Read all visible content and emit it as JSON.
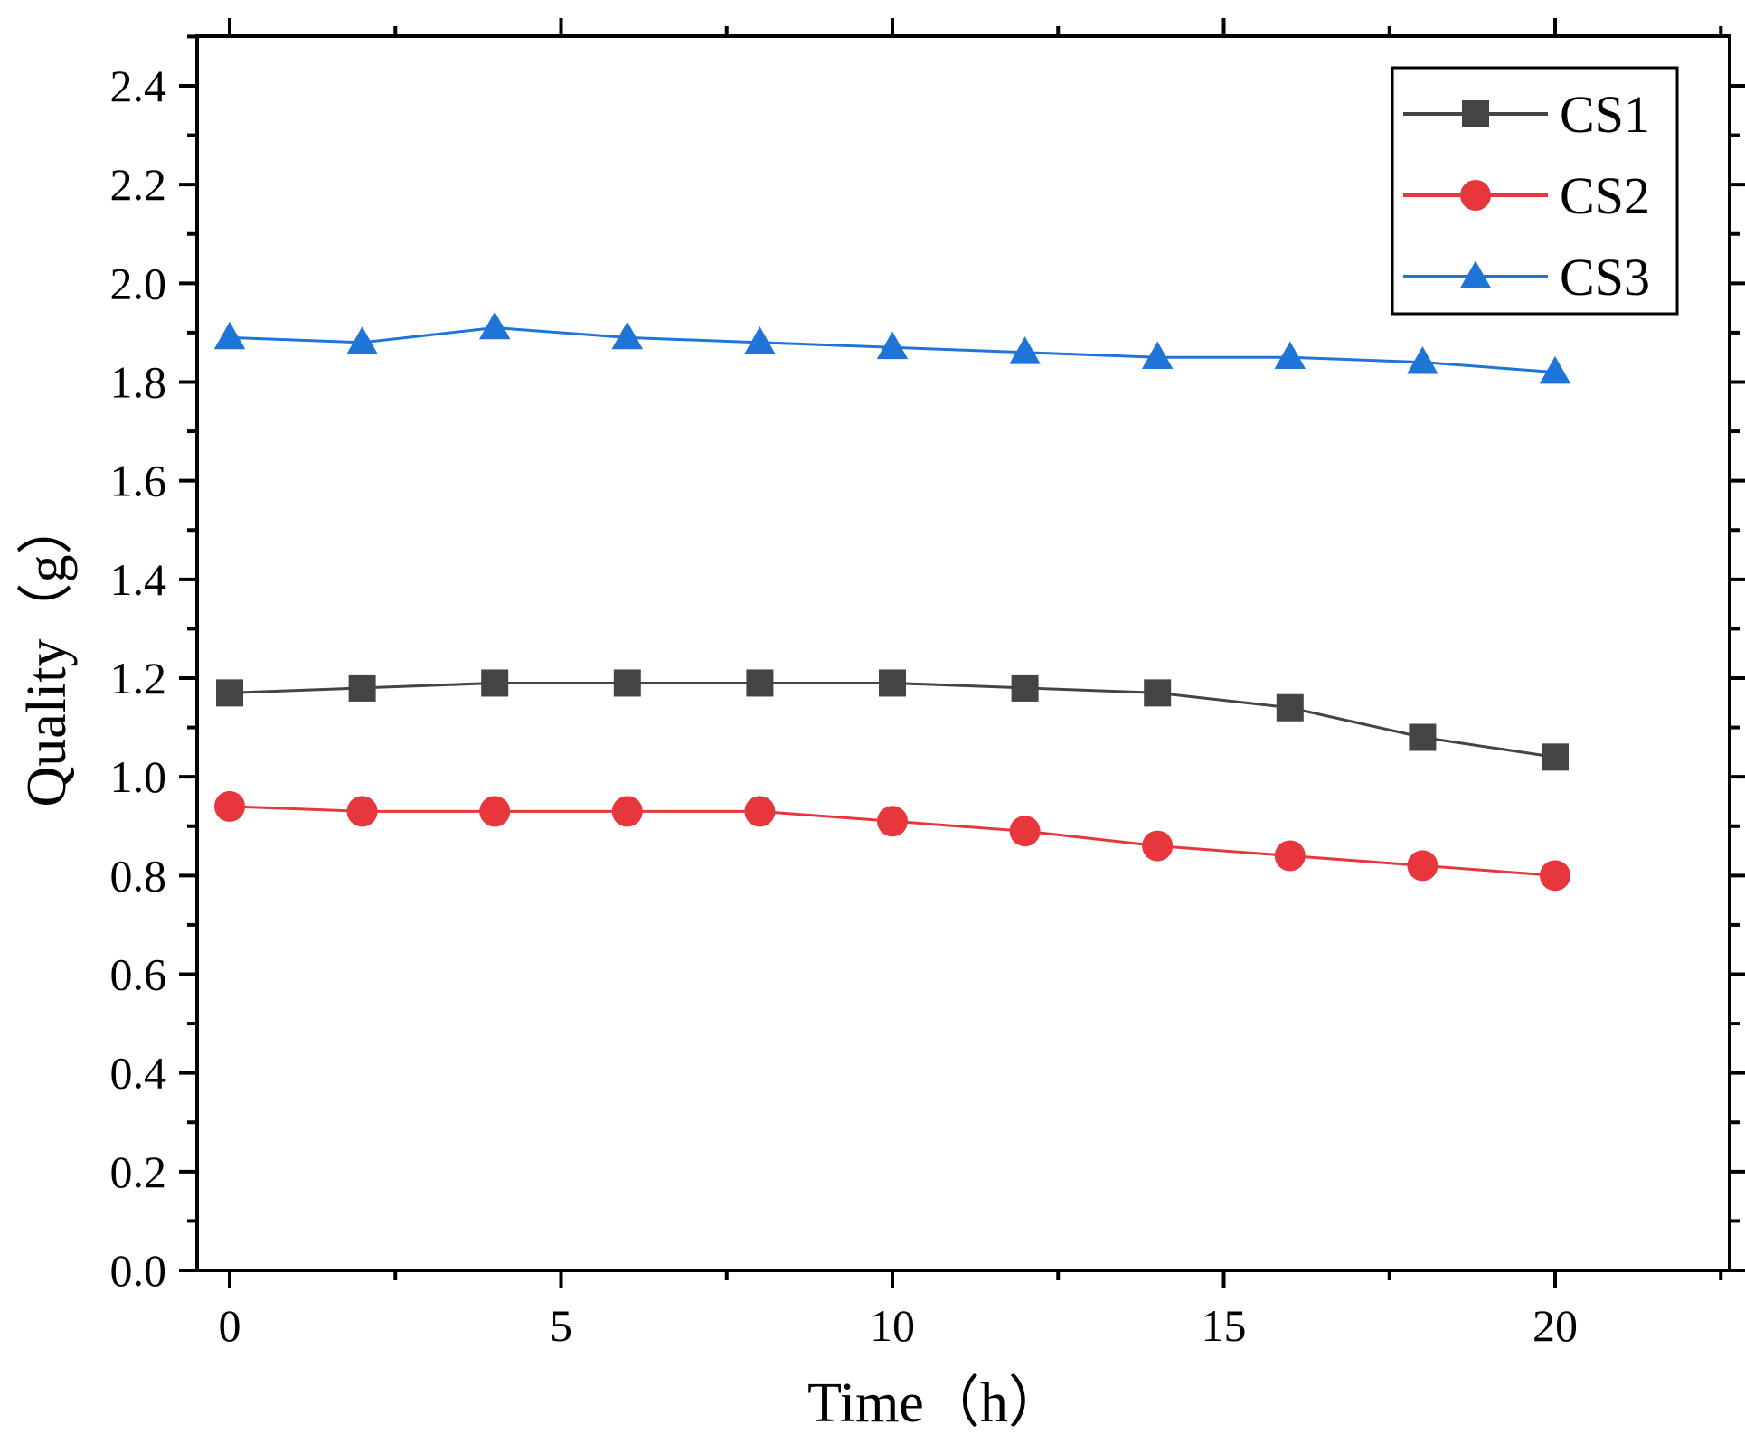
{
  "chart_data": {
    "type": "line",
    "title": "",
    "xlabel": "Time（h）",
    "ylabel": "Quality（g）",
    "xlim": [
      -1,
      22.5
    ],
    "ylim": [
      0,
      2.5
    ],
    "x_ticks": [
      0,
      5,
      10,
      15,
      20
    ],
    "x_tick_labels": [
      "0",
      "5",
      "10",
      "15",
      "20"
    ],
    "y_ticks": [
      0,
      0.2,
      0.4,
      0.6,
      0.8,
      1.0,
      1.2,
      1.4,
      1.6,
      1.8,
      2.0,
      2.2,
      2.4
    ],
    "y_tick_labels": [
      "0.0",
      "0.2",
      "0.4",
      "0.6",
      "0.8",
      "1.0",
      "1.2",
      "1.4",
      "1.6",
      "1.8",
      "2.0",
      "2.2",
      "2.4"
    ],
    "grid": false,
    "legend_position": "top-right",
    "x": [
      0,
      2,
      4,
      6,
      8,
      10,
      12,
      14,
      16,
      18,
      20
    ],
    "series": [
      {
        "name": "CS1",
        "marker": "square",
        "color": "#444444",
        "values": [
          1.17,
          1.18,
          1.19,
          1.19,
          1.19,
          1.19,
          1.18,
          1.17,
          1.14,
          1.08,
          1.04
        ]
      },
      {
        "name": "CS2",
        "marker": "circle",
        "color": "#e8373c",
        "values": [
          0.94,
          0.93,
          0.93,
          0.93,
          0.93,
          0.91,
          0.89,
          0.86,
          0.84,
          0.82,
          0.8
        ]
      },
      {
        "name": "CS3",
        "marker": "triangle",
        "color": "#1f74d8",
        "values": [
          1.89,
          1.88,
          1.91,
          1.89,
          1.88,
          1.87,
          1.86,
          1.85,
          1.85,
          1.84,
          1.82
        ]
      }
    ]
  }
}
